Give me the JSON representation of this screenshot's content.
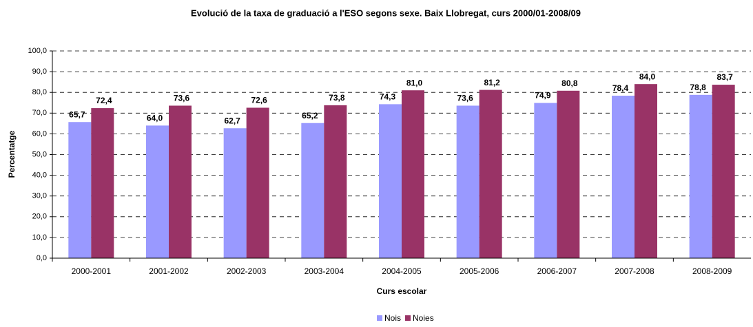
{
  "chart_data": {
    "type": "bar",
    "title": "Evolució de la taxa de graduació a l'ESO segons sexe. Baix Llobregat, curs 2000/01-2008/09",
    "x_label": "Curs escolar",
    "y_label": "Percentatge",
    "categories": [
      "2000-2001",
      "2001-2002",
      "2002-2003",
      "2003-2004",
      "2004-2005",
      "2005-2006",
      "2006-2007",
      "2007-2008",
      "2008-2009"
    ],
    "series": [
      {
        "name": "Nois",
        "color": "#9999ff",
        "values": [
          65.7,
          64.0,
          62.7,
          65.2,
          74.3,
          73.6,
          74.9,
          78.4,
          78.8
        ],
        "value_labels": [
          "65,7",
          "64,0",
          "62,7",
          "65,2",
          "74,3",
          "73,6",
          "74,9",
          "78,4",
          "78,8"
        ]
      },
      {
        "name": "Noies",
        "color": "#993366",
        "values": [
          72.4,
          73.6,
          72.6,
          73.8,
          81.0,
          81.2,
          80.8,
          84.0,
          83.7
        ],
        "value_labels": [
          "72,4",
          "73,6",
          "72,6",
          "73,8",
          "81,0",
          "81,2",
          "80,8",
          "84,0",
          "83,7"
        ]
      }
    ],
    "ylim": [
      0,
      100
    ],
    "yticks": [
      {
        "value": 0,
        "label": "0,0"
      },
      {
        "value": 10,
        "label": "10,0"
      },
      {
        "value": 20,
        "label": "20,0"
      },
      {
        "value": 30,
        "label": "30,0"
      },
      {
        "value": 40,
        "label": "40,0"
      },
      {
        "value": 50,
        "label": "50,0"
      },
      {
        "value": 60,
        "label": "60,0"
      },
      {
        "value": 70,
        "label": "70,0"
      },
      {
        "value": 80,
        "label": "80,0"
      },
      {
        "value": 90,
        "label": "90,0"
      },
      {
        "value": 100,
        "label": "100,0"
      }
    ],
    "grid": true,
    "legend": "bottom"
  }
}
